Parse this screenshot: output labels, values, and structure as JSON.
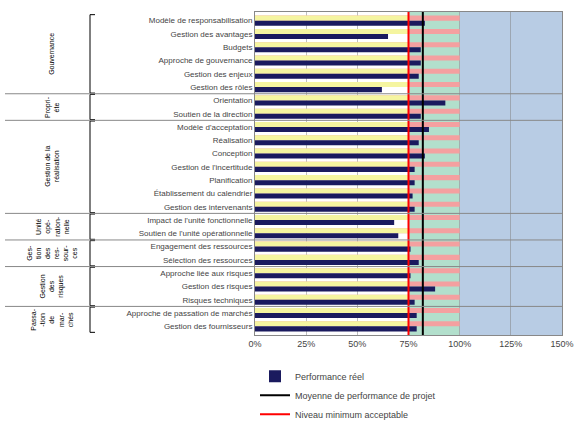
{
  "chart_data": {
    "type": "bar",
    "orientation": "horizontal",
    "categories": [
      "Modèle de responsabilisation",
      "Gestion des avantages",
      "Budgets",
      "Approche de gouvernance",
      "Gestion des enjeux",
      "Gestion des rôles",
      "Orientation",
      "Soutien de la direction",
      "Modèle d'acceptation",
      "Réalisation",
      "Conception",
      "Gestion de l'incertitude",
      "Planification",
      "Établissement du calendrier",
      "Gestion des intervenants",
      "Impact de l'unité fonctionnelle",
      "Soutien de l'unité opérationnelle",
      "Engagement des ressources",
      "Sélection des ressources",
      "Approche liée aux risques",
      "Gestion des risques",
      "Risques techniques",
      "Approche de passation de marchés",
      "Gestion des fournisseurs"
    ],
    "series": [
      {
        "color": "#f4a0a0",
        "values": [
          100,
          100,
          100,
          100,
          100,
          100,
          100,
          100,
          100,
          100,
          100,
          100,
          100,
          100,
          100,
          100,
          100,
          100,
          100,
          100,
          100,
          100,
          100,
          100
        ]
      },
      {
        "color": "#f5f5a0",
        "values": [
          75,
          75,
          75,
          75,
          75,
          75,
          75,
          75,
          75,
          75,
          75,
          75,
          75,
          75,
          75,
          75,
          75,
          75,
          75,
          75,
          75,
          75,
          75,
          75
        ]
      },
      {
        "name": "Performance réel",
        "color": "#1a1a5e",
        "values": [
          83,
          65,
          81,
          81,
          80,
          62,
          93,
          81,
          85,
          80,
          83,
          78,
          78,
          77,
          78,
          68,
          70,
          76,
          80,
          76,
          88,
          78,
          79,
          79
        ]
      }
    ],
    "reference_lines": [
      {
        "name": "Moyenne de performance de projet",
        "x": 82,
        "color": "#000000"
      },
      {
        "name": "Niveau minimum acceptable",
        "x": 75,
        "color": "#ff0000"
      }
    ],
    "bands": [
      {
        "from": 0,
        "to": 75,
        "color": "#ffffff"
      },
      {
        "from": 75,
        "to": 100,
        "color": "#b2dfcc"
      },
      {
        "from": 100,
        "to": 150,
        "color": "#b8cce4"
      }
    ],
    "groups": [
      {
        "label": "Gouvernance",
        "start": 0,
        "end": 6
      },
      {
        "label": "Propri-\néte",
        "start": 6,
        "end": 8
      },
      {
        "label": "Gestion de la\nréalisation",
        "start": 8,
        "end": 15
      },
      {
        "label": "Unité\nopé-\nration-\nnelle",
        "start": 15,
        "end": 17
      },
      {
        "label": "Ges-\ntion\ndes\nres-\nsour-\nces",
        "start": 17,
        "end": 19
      },
      {
        "label": "Gestion\ndes\nrisques",
        "start": 19,
        "end": 22
      },
      {
        "label": "Passa-\n-tion\nde\nmar-\nchés",
        "start": 22,
        "end": 24
      }
    ],
    "xlim": [
      0,
      150
    ],
    "xticks": [
      {
        "value": 0,
        "label": "0%"
      },
      {
        "value": 25,
        "label": "25%"
      },
      {
        "value": 50,
        "label": "50%"
      },
      {
        "value": 75,
        "label": "75%"
      },
      {
        "value": 100,
        "label": "100%"
      },
      {
        "value": 125,
        "label": "125%"
      },
      {
        "value": 150,
        "label": "150%"
      }
    ],
    "grid": true,
    "legend": "bottom"
  }
}
